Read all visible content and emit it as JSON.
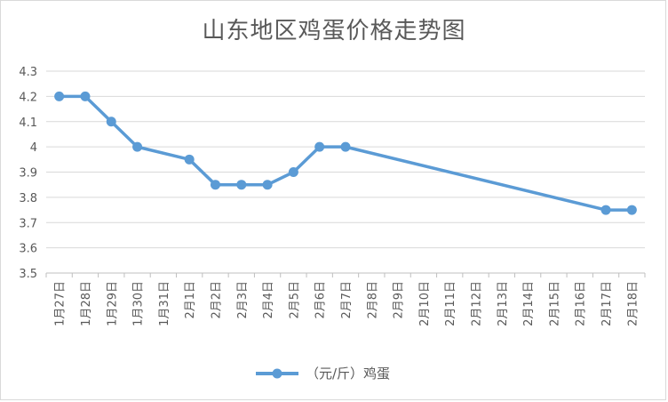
{
  "chart_data": {
    "type": "line",
    "title": "山东地区鸡蛋价格走势图",
    "categories": [
      "1月27日",
      "1月28日",
      "1月29日",
      "1月30日",
      "1月31日",
      "2月1日",
      "2月2日",
      "2月3日",
      "2月4日",
      "2月5日",
      "2月6日",
      "2月7日",
      "2月8日",
      "2月9日",
      "2月10日",
      "2月11日",
      "2月12日",
      "2月13日",
      "2月14日",
      "2月15日",
      "2月16日",
      "2月17日",
      "2月18日"
    ],
    "series": [
      {
        "name": "（元/斤）鸡蛋",
        "color": "#5b9bd5",
        "values": [
          4.2,
          4.2,
          4.1,
          4.0,
          null,
          3.95,
          3.85,
          3.85,
          3.85,
          3.9,
          4.0,
          4.0,
          null,
          null,
          null,
          null,
          null,
          null,
          null,
          null,
          null,
          3.75,
          3.75
        ]
      }
    ],
    "yticks": [
      "4.3",
      "4.2",
      "4.1",
      "4",
      "3.9",
      "3.8",
      "3.7",
      "3.6",
      "3.5"
    ],
    "ylim": [
      3.5,
      4.3
    ],
    "grid": true,
    "legend_position": "bottom"
  }
}
